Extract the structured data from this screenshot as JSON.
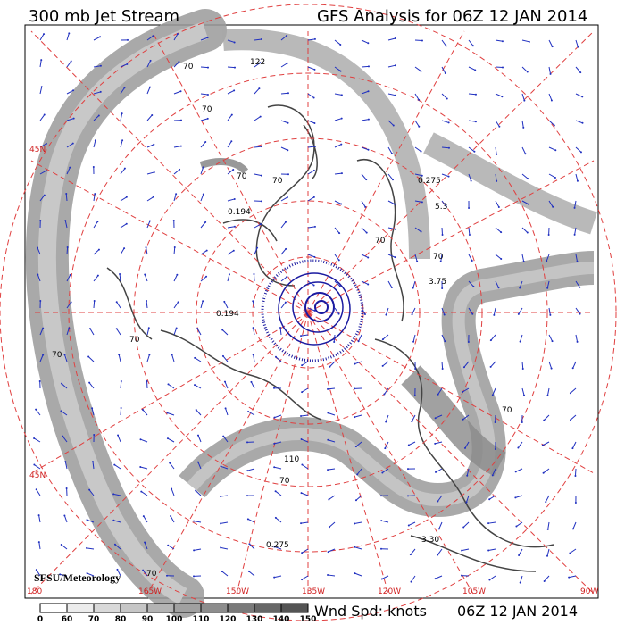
{
  "header": {
    "title": "300 mb Jet Stream",
    "subtitle": "GFS Analysis for 06Z 12 JAN 2014"
  },
  "map": {
    "credit": "SFSU/Meteorology",
    "lat_labels": [
      "45N",
      "45N"
    ],
    "lon_labels": [
      "180",
      "165W",
      "150W",
      "135W",
      "120W",
      "105W",
      "90W"
    ],
    "contour_labels": [
      "70",
      "122",
      "70",
      "70",
      "0.194",
      "0.275",
      "0.194",
      "3.75",
      "5.3",
      "70",
      "70",
      "70",
      "0.275",
      "3.30",
      "70",
      "110",
      "70",
      "70",
      "70",
      "70"
    ]
  },
  "legend": {
    "ticks": [
      0,
      60,
      70,
      80,
      90,
      100,
      110,
      120,
      130,
      140,
      150
    ],
    "label": "Wnd Spd: knots",
    "time": "06Z 12 JAN 2014"
  }
}
